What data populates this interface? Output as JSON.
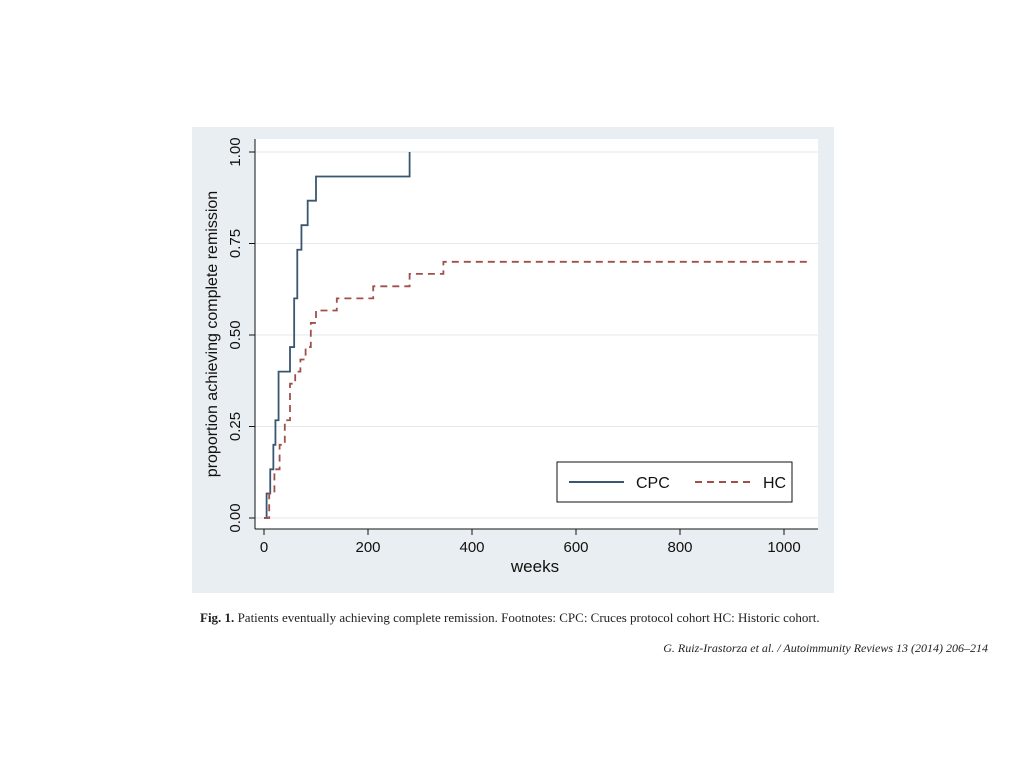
{
  "colors": {
    "panel_bg": "#e8eef1",
    "plot_bg": "#ffffff",
    "grid": "#e2eaee",
    "cpc": "#3a5670",
    "hc": "#a0504a",
    "axis": "#111111"
  },
  "chart_data": {
    "type": "line",
    "step": true,
    "xlabel": "weeks",
    "ylabel": "proportion achieving complete remission",
    "xlim": [
      0,
      1060
    ],
    "ylim": [
      0,
      1.0
    ],
    "xticks": [
      0,
      200,
      400,
      600,
      800,
      1000
    ],
    "yticks": [
      0.0,
      0.25,
      0.5,
      0.75,
      1.0
    ],
    "xtick_labels": [
      "0",
      "200",
      "400",
      "600",
      "800",
      "1000"
    ],
    "ytick_labels": [
      "0.00",
      "0.25",
      "0.50",
      "0.75",
      "1.00"
    ],
    "grid": true,
    "legend_position": "bottom-right",
    "series": [
      {
        "name": "CPC",
        "style": "solid",
        "x": [
          0,
          5,
          12,
          18,
          22,
          28,
          50,
          58,
          64,
          72,
          84,
          90,
          100,
          280,
          280
        ],
        "y": [
          0,
          0.067,
          0.133,
          0.2,
          0.267,
          0.4,
          0.467,
          0.6,
          0.733,
          0.8,
          0.867,
          0.867,
          0.933,
          0.933,
          1.0
        ]
      },
      {
        "name": "HC",
        "style": "dashed",
        "x": [
          0,
          10,
          20,
          30,
          40,
          50,
          60,
          70,
          80,
          90,
          100,
          120,
          140,
          210,
          280,
          345,
          1050
        ],
        "y": [
          0,
          0.067,
          0.133,
          0.2,
          0.267,
          0.367,
          0.4,
          0.433,
          0.467,
          0.533,
          0.567,
          0.567,
          0.6,
          0.633,
          0.667,
          0.7,
          0.7
        ]
      }
    ]
  },
  "caption": {
    "fig_label": "Fig. 1.",
    "text": "Patients eventually achieving complete remission. Footnotes: CPC: Cruces protocol cohort HC: Historic cohort."
  },
  "citation": "G. Ruiz-Irastorza et al. / Autoimmunity Reviews 13 (2014) 206–214"
}
